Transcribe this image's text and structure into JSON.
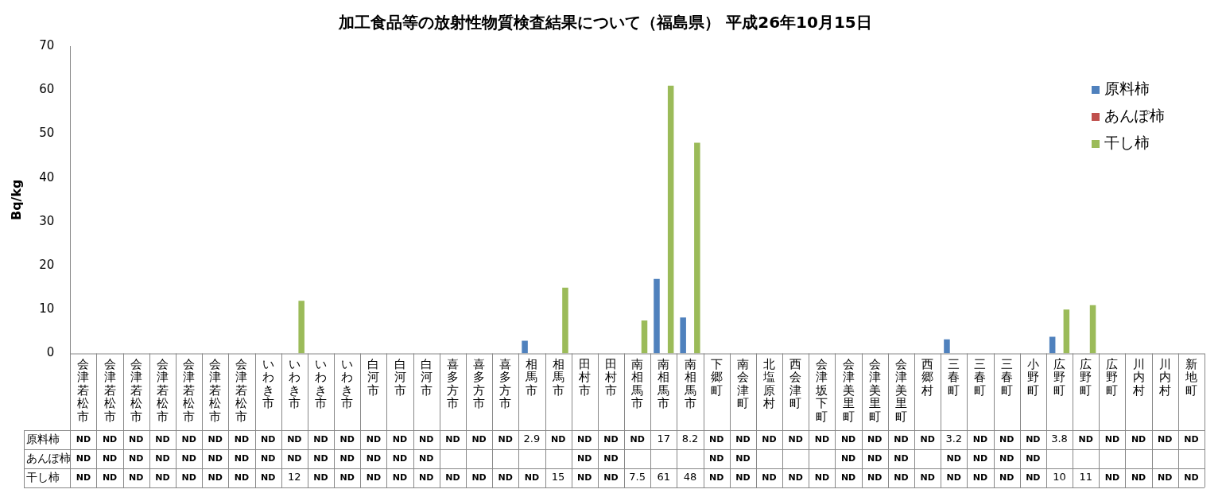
{
  "chart_data": {
    "type": "bar",
    "title": "加工食品等の放射性物質検査結果について（福島県） 平成26年10月15日",
    "ylabel": "Bq/kg",
    "categories": [
      "会津若松市",
      "会津若松市",
      "会津若松市",
      "会津若松市",
      "会津若松市",
      "会津若松市",
      "会津若松市",
      "いわき市",
      "いわき市",
      "いわき市",
      "いわき市",
      "白河市",
      "白河市",
      "白河市",
      "喜多方市",
      "喜多方市",
      "喜多方市",
      "相馬市",
      "相馬市",
      "田村市",
      "田村市",
      "南相馬市",
      "南相馬市",
      "南相馬市",
      "下郷町",
      "南会津町",
      "北塩原村",
      "西会津町",
      "会津坂下町",
      "会津美里町",
      "会津美里町",
      "会津美里町",
      "西郷村",
      "三春町",
      "三春町",
      "三春町",
      "小野町",
      "広野町",
      "広野町",
      "広野町",
      "川内村",
      "川内村",
      "新地町"
    ],
    "series": [
      {
        "name": "原料柿",
        "color": "#4f81bd",
        "values": [
          null,
          null,
          null,
          null,
          null,
          null,
          null,
          null,
          null,
          null,
          null,
          null,
          null,
          null,
          null,
          null,
          null,
          2.9,
          null,
          null,
          null,
          null,
          17,
          8.2,
          null,
          null,
          null,
          null,
          null,
          null,
          null,
          null,
          null,
          3.2,
          null,
          null,
          null,
          3.8,
          null,
          null,
          null,
          null,
          null
        ],
        "value_labels": [
          "ND",
          "ND",
          "ND",
          "ND",
          "ND",
          "ND",
          "ND",
          "ND",
          "ND",
          "ND",
          "ND",
          "ND",
          "ND",
          "ND",
          "ND",
          "ND",
          "ND",
          "2.9",
          "ND",
          "ND",
          "ND",
          "ND",
          "17",
          "8.2",
          "ND",
          "ND",
          "ND",
          "ND",
          "ND",
          "ND",
          "ND",
          "ND",
          "ND",
          "3.2",
          "ND",
          "ND",
          "ND",
          "3.8",
          "ND",
          "ND",
          "ND",
          "ND",
          "ND"
        ]
      },
      {
        "name": "あんぽ柿",
        "color": "#c0504d",
        "values": [
          null,
          null,
          null,
          null,
          null,
          null,
          null,
          null,
          null,
          null,
          null,
          null,
          null,
          null,
          null,
          null,
          null,
          null,
          null,
          null,
          null,
          null,
          null,
          null,
          null,
          null,
          null,
          null,
          null,
          null,
          null,
          null,
          null,
          null,
          null,
          null,
          null,
          null,
          null,
          null,
          null,
          null,
          null
        ],
        "value_labels": [
          "ND",
          "ND",
          "ND",
          "ND",
          "ND",
          "ND",
          "ND",
          "ND",
          "ND",
          "ND",
          "ND",
          "ND",
          "ND",
          "ND",
          null,
          null,
          null,
          null,
          null,
          "ND",
          "ND",
          null,
          null,
          null,
          "ND",
          "ND",
          null,
          null,
          null,
          "ND",
          "ND",
          "ND",
          null,
          "ND",
          "ND",
          "ND",
          "ND",
          null,
          null,
          null,
          null,
          null,
          null
        ]
      },
      {
        "name": "干し柿",
        "color": "#9bbb59",
        "values": [
          null,
          null,
          null,
          null,
          null,
          null,
          null,
          null,
          12,
          null,
          null,
          null,
          null,
          null,
          null,
          null,
          null,
          null,
          15,
          null,
          null,
          7.5,
          61,
          48,
          null,
          null,
          null,
          null,
          null,
          null,
          null,
          null,
          null,
          null,
          null,
          null,
          null,
          10,
          11,
          null,
          null,
          null,
          null
        ],
        "value_labels": [
          "ND",
          "ND",
          "ND",
          "ND",
          "ND",
          "ND",
          "ND",
          "ND",
          "12",
          "ND",
          "ND",
          "ND",
          "ND",
          "ND",
          "ND",
          "ND",
          "ND",
          "ND",
          "15",
          "ND",
          "ND",
          "7.5",
          "61",
          "48",
          "ND",
          "ND",
          "ND",
          "ND",
          "ND",
          "ND",
          "ND",
          "ND",
          "ND",
          "ND",
          "ND",
          "ND",
          "ND",
          "10",
          "11",
          "ND",
          "ND",
          "ND",
          "ND"
        ]
      }
    ],
    "ylim": [
      0,
      70
    ],
    "yticks": [
      0,
      10,
      20,
      30,
      40,
      50,
      60,
      70
    ],
    "grid": false,
    "legend": "top right"
  }
}
